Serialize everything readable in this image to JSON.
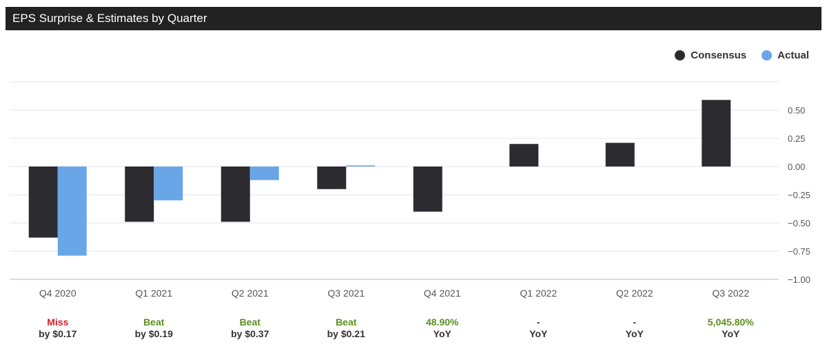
{
  "header": {
    "title": "EPS Surprise & Estimates by Quarter"
  },
  "legend": {
    "consensus_label": "Consensus",
    "actual_label": "Actual"
  },
  "colors": {
    "consensus": "#2b2b30",
    "actual": "#69a6e7",
    "miss": "#d0202a",
    "beat": "#5a8f1e",
    "neutral": "#333333"
  },
  "chart_data": {
    "type": "bar",
    "categories": [
      "Q4 2020",
      "Q1 2021",
      "Q2 2021",
      "Q3 2021",
      "Q4 2021",
      "Q1 2022",
      "Q2 2022",
      "Q3 2022"
    ],
    "series": [
      {
        "name": "Consensus",
        "values": [
          -0.63,
          -0.49,
          -0.49,
          -0.2,
          -0.4,
          0.2,
          0.21,
          0.59
        ]
      },
      {
        "name": "Actual",
        "values": [
          -0.79,
          -0.3,
          -0.12,
          0.01,
          null,
          null,
          null,
          null
        ]
      }
    ],
    "yticks": [
      0.5,
      0.25,
      0.0,
      -0.25,
      -0.5,
      -0.75,
      -1.0
    ],
    "ytick_labels": [
      "0.50",
      "0.25",
      "0.00",
      "−0.25",
      "−0.50",
      "−0.75",
      "−1.00"
    ],
    "ylim": [
      -1.0,
      0.75
    ],
    "legend_position": "top-right",
    "grid": true
  },
  "surprises": [
    {
      "line1": "Miss",
      "line2": "by $0.17",
      "status": "miss"
    },
    {
      "line1": "Beat",
      "line2": "by $0.19",
      "status": "beat"
    },
    {
      "line1": "Beat",
      "line2": "by $0.37",
      "status": "beat"
    },
    {
      "line1": "Beat",
      "line2": "by $0.21",
      "status": "beat"
    },
    {
      "line1": "48.90%",
      "line2": "YoY",
      "status": "beat"
    },
    {
      "line1": "-",
      "line2": "YoY",
      "status": "neutral"
    },
    {
      "line1": "-",
      "line2": "YoY",
      "status": "neutral"
    },
    {
      "line1": "5,045.80%",
      "line2": "YoY",
      "status": "beat"
    }
  ]
}
